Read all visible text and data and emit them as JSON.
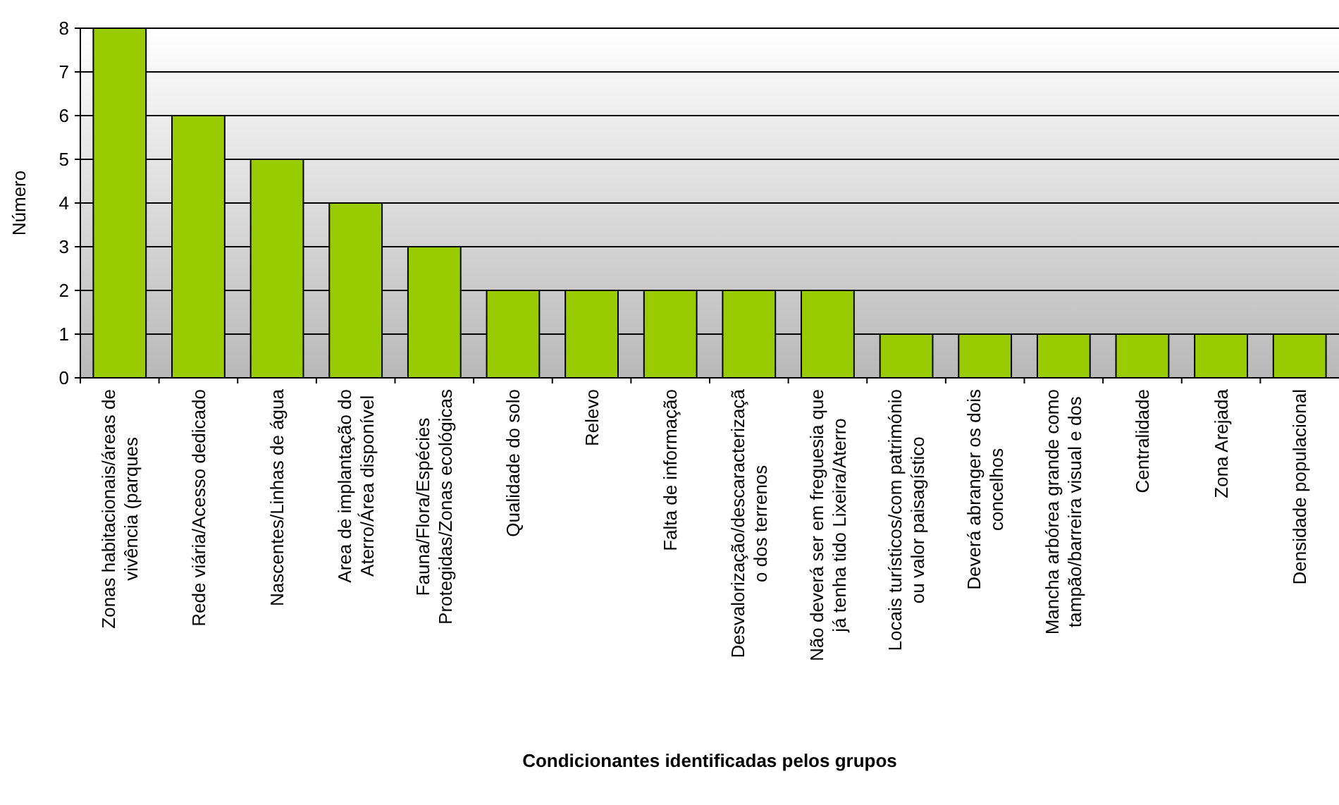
{
  "chart_data": {
    "type": "bar",
    "xlabel": "Condicionantes identificadas pelos grupos",
    "ylabel": "Número",
    "categories": [
      "Zonas habitacionais/áreas de\nvivência (parques",
      "Rede viária/Acesso dedicado",
      "Nascentes/Linhas de água",
      "Area de implantação do\nAterro/Área disponível",
      "Fauna/Flora/Espécies\nProtegidas/Zonas ecológicas",
      "Qualidade do solo",
      "Relevo",
      "Falta de informação",
      "Desvalorização/descaracterizaçã\no dos terrenos",
      "Não deverá ser em freguesia que\njá tenha tido Lixeira/Aterro",
      "Locais turísticos/com património\nou valor paisagístico",
      "Deverá abranger os dois\nconcelhos",
      "Mancha arbórea grande como\ntampão/barreira visual e dos",
      "Centralidade",
      "Zona Arejada",
      "Densidade populacional"
    ],
    "values": [
      8,
      6,
      5,
      4,
      3,
      2,
      2,
      2,
      2,
      2,
      1,
      1,
      1,
      1,
      1,
      1
    ],
    "color": "#99cc00",
    "ylim": [
      0,
      8
    ],
    "yticks": [
      0,
      1,
      2,
      3,
      4,
      5,
      6,
      7,
      8
    ],
    "grid": "y"
  }
}
